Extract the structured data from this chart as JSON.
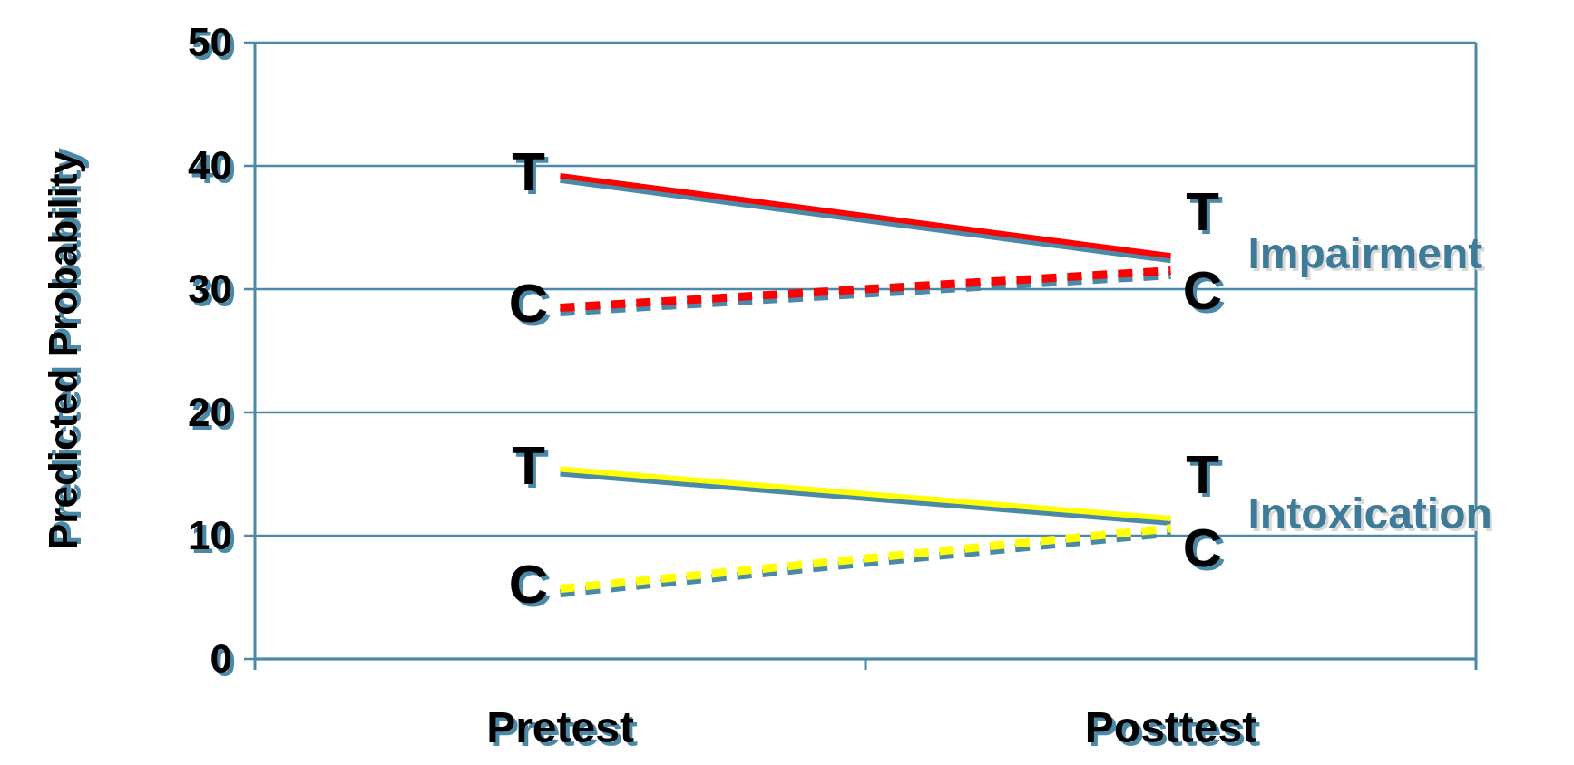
{
  "chart_data": {
    "type": "line",
    "ylabel": "Predicted Probability",
    "categories": [
      "Pretest",
      "Posttest"
    ],
    "series": [
      {
        "name": "T",
        "color": "#ff0000",
        "values": [
          39.2,
          32.7
        ],
        "line_style": "solid"
      },
      {
        "name": "C",
        "color": "#ff0000",
        "values": [
          28.5,
          31.5
        ],
        "line_style": "dashed"
      },
      {
        "name": "T",
        "color": "#ffff00",
        "values": [
          15.4,
          11.4
        ],
        "line_style": "solid"
      },
      {
        "name": "C",
        "color": "#ffff00",
        "values": [
          5.7,
          10.6
        ],
        "line_style": "dashed"
      }
    ],
    "ylim": [
      0,
      50
    ],
    "yticks": [
      0,
      10,
      20,
      30,
      40,
      50
    ],
    "grid": "y",
    "marker": "none",
    "annotations": [
      "Impairment",
      "Intoxication"
    ]
  }
}
